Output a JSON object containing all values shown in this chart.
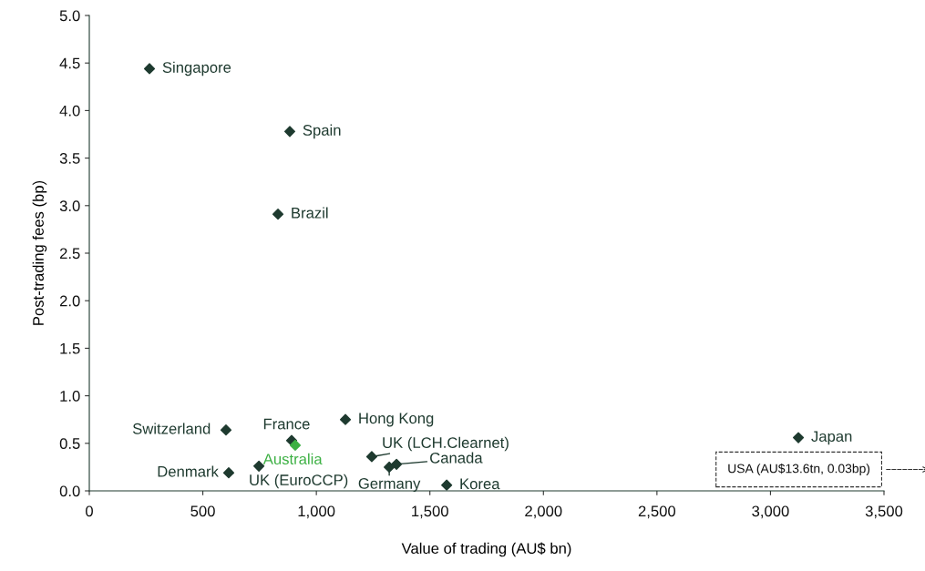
{
  "chart_data": {
    "type": "scatter",
    "xlabel": "Value of trading (AU$ bn)",
    "ylabel": "Post-trading fees (bp)",
    "x": [
      265,
      883,
      831,
      602,
      891,
      907,
      1128,
      1244,
      1353,
      1321,
      1574,
      614,
      747,
      3123
    ],
    "values": [
      4.44,
      3.78,
      2.91,
      0.64,
      0.53,
      0.48,
      0.75,
      0.36,
      0.28,
      0.25,
      0.06,
      0.19,
      0.26,
      0.56
    ],
    "colors": [
      "#1e3a2f",
      "#1e3a2f",
      "#1e3a2f",
      "#1e3a2f",
      "#1e3a2f",
      "#3cb043",
      "#1e3a2f",
      "#1e3a2f",
      "#1e3a2f",
      "#1e3a2f",
      "#1e3a2f",
      "#1e3a2f",
      "#1e3a2f",
      "#1e3a2f"
    ],
    "marker": "diamond",
    "annotations": [
      {
        "text": "Singapore",
        "x": 265,
        "y": 4.44
      },
      {
        "text": "Spain",
        "x": 883,
        "y": 3.78
      },
      {
        "text": "Brazil",
        "x": 831,
        "y": 2.91
      },
      {
        "text": "Switzerland",
        "x": 602,
        "y": 0.64
      },
      {
        "text": "France",
        "x": 891,
        "y": 0.53
      },
      {
        "text": "Australia",
        "x": 907,
        "y": 0.48
      },
      {
        "text": "Hong Kong",
        "x": 1128,
        "y": 0.75
      },
      {
        "text": "UK (LCH.Clearnet)",
        "x": 1244,
        "y": 0.36
      },
      {
        "text": "Canada",
        "x": 1353,
        "y": 0.28
      },
      {
        "text": "Germany",
        "x": 1321,
        "y": 0.25
      },
      {
        "text": "Korea",
        "x": 1574,
        "y": 0.06
      },
      {
        "text": "Denmark",
        "x": 614,
        "y": 0.19
      },
      {
        "text": "UK (EuroCCP)",
        "x": 747,
        "y": 0.26
      },
      {
        "text": "Japan",
        "x": 3123,
        "y": 0.56
      },
      "USA (AU$13.6tn, 0.03bp)"
    ],
    "xlim": [
      0,
      3500
    ],
    "xticks": [
      0,
      {
        "value": 500,
        "label": "500"
      },
      {
        "value": 1000,
        "label": "1,000"
      },
      {
        "value": 1500,
        "label": "1,500"
      },
      {
        "value": 2000,
        "label": "2,000"
      },
      {
        "value": 2500,
        "label": "2,500"
      },
      {
        "value": 3000,
        "label": "3,000"
      },
      {
        "value": 3500,
        "label": "3,500"
      }
    ],
    "ylim": [
      0,
      5.0
    ],
    "yticks": [
      {
        "value": 0,
        "label": "0.0"
      },
      {
        "value": 0.5,
        "label": "0.5"
      },
      {
        "value": 1.0,
        "label": "1.0"
      },
      {
        "value": 1.5,
        "label": "1.5"
      },
      {
        "value": 2.0,
        "label": "2.0"
      },
      {
        "value": 2.5,
        "label": "2.5"
      },
      {
        "value": 3.0,
        "label": "3.0"
      },
      {
        "value": 3.5,
        "label": "3.5"
      },
      {
        "value": 4.0,
        "label": "4.0"
      },
      {
        "value": 4.5,
        "label": "4.5"
      },
      {
        "value": 5.0,
        "label": "5.0"
      }
    ],
    "grid": false
  }
}
